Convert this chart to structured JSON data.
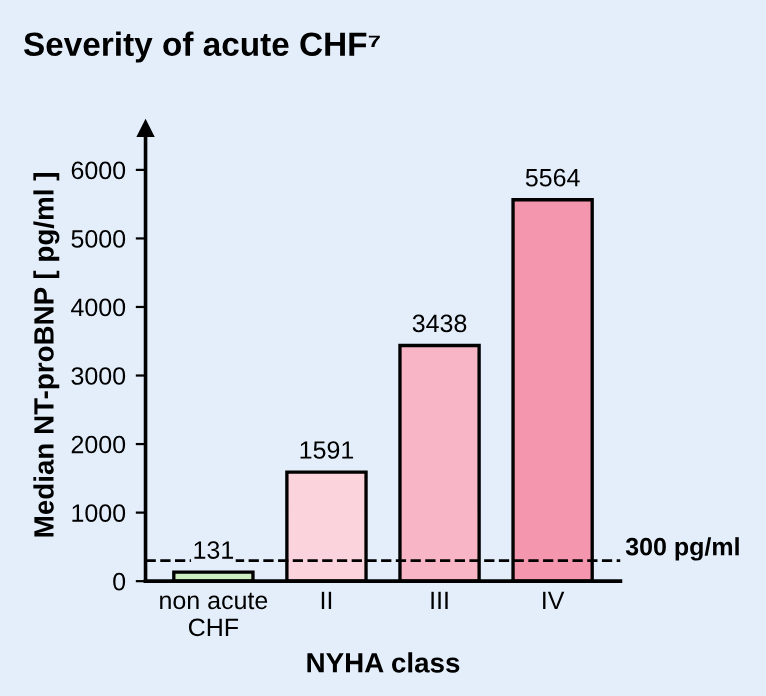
{
  "chart_data": {
    "type": "bar",
    "title": "Severity of acute CHF⁷",
    "xlabel": "NYHA class",
    "ylabel": "Median NT-proBNP [ pg/ml ]",
    "categories": [
      "non acute\nCHF",
      "II",
      "III",
      "IV"
    ],
    "values": [
      131,
      1591,
      3438,
      5564
    ],
    "colors": [
      "#cdeec0",
      "#fbd3dd",
      "#f8b5c6",
      "#f497ae"
    ],
    "data_labels": true,
    "ylim": [
      0,
      6600
    ],
    "yticks": [
      0,
      1000,
      2000,
      3000,
      4000,
      5000,
      6000
    ],
    "ref_lines": [
      {
        "axis": "y",
        "value": 300,
        "label": "300 pg/ml",
        "line_style": "dashed",
        "color": "#000000"
      }
    ],
    "grid": false,
    "legend": false
  }
}
